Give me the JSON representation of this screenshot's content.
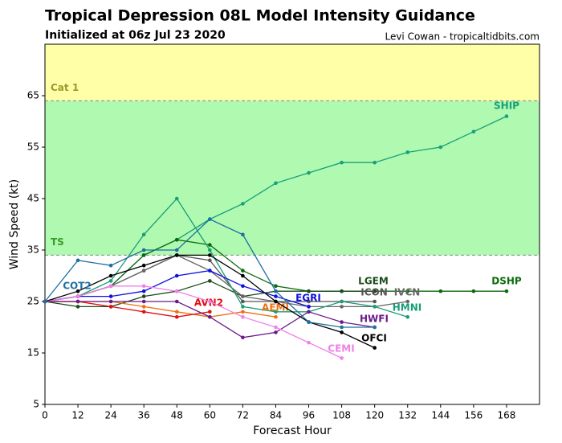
{
  "chart_data": {
    "type": "line",
    "title": "Tropical Depression 08L Model Intensity Guidance",
    "subtitle": "Initialized at 06z Jul 23 2020",
    "credit": "Levi Cowan - tropicaltidbits.com",
    "x_label": "Forecast Hour",
    "y_label": "Wind Speed (kt)",
    "xlim": [
      0,
      180
    ],
    "ylim": [
      5,
      75
    ],
    "xticks": [
      0,
      12,
      24,
      36,
      48,
      60,
      72,
      84,
      96,
      108,
      120,
      132,
      144,
      156,
      168
    ],
    "yticks": [
      5,
      15,
      25,
      35,
      45,
      55,
      65
    ],
    "bands": [
      {
        "label": "TS",
        "from": 34,
        "to": 64,
        "color": "#b0f9b0",
        "text_color": "#3a9a2a"
      },
      {
        "label": "Cat 1",
        "from": 64,
        "to": 75,
        "color": "#ffffa8",
        "text_color": "#9a9a2a"
      }
    ],
    "x": [
      0,
      12,
      24,
      36,
      48,
      60,
      72,
      84,
      96,
      108,
      120,
      132,
      144,
      156,
      168
    ],
    "series": [
      {
        "name": "SHIP",
        "color": "#17a07a",
        "values": [
          25,
          26,
          28,
          34,
          37,
          41,
          44,
          48,
          50,
          52,
          52,
          54,
          55,
          58,
          61
        ]
      },
      {
        "name": "DSHP",
        "color": "#0a6a0a",
        "values": [
          25,
          26,
          28,
          34,
          37,
          36,
          31,
          28,
          27,
          27,
          27,
          27,
          27,
          27,
          27
        ]
      },
      {
        "name": "LGEM",
        "color": "#1b4d1b",
        "values": [
          25,
          24,
          24,
          26,
          27,
          29,
          26,
          27,
          27,
          27,
          27,
          null,
          null,
          null,
          null
        ]
      },
      {
        "name": "ICON",
        "color": "#555555",
        "values": [
          25,
          26,
          28,
          31,
          34,
          33,
          25,
          25,
          25,
          25,
          25,
          null,
          null,
          null,
          null
        ]
      },
      {
        "name": "IVCN",
        "color": "#666666",
        "values": [
          25,
          26,
          28,
          31,
          34,
          31,
          26,
          25,
          24,
          24,
          24,
          25,
          null,
          null,
          null
        ]
      },
      {
        "name": "HMNI",
        "color": "#1a9e77",
        "values": [
          25,
          26,
          29,
          38,
          45,
          35,
          24,
          23,
          23,
          25,
          24,
          22,
          null,
          null,
          null
        ]
      },
      {
        "name": "EGRI",
        "color": "#1010e0",
        "values": [
          25,
          26,
          26,
          27,
          30,
          31,
          28,
          26,
          24,
          null,
          null,
          null,
          null,
          null,
          null
        ]
      },
      {
        "name": "AEMI",
        "color": "#f07010",
        "values": [
          25,
          25,
          25,
          24,
          23,
          22,
          23,
          22,
          null,
          null,
          null,
          null,
          null,
          null,
          null
        ]
      },
      {
        "name": "AVN2",
        "color": "#e01010",
        "values": [
          25,
          25,
          24,
          23,
          22,
          23,
          null,
          null,
          null,
          null,
          null,
          null,
          null,
          null,
          null
        ]
      },
      {
        "name": "HWFI",
        "color": "#6a1a8a",
        "values": [
          25,
          25,
          25,
          25,
          25,
          22,
          18,
          19,
          23,
          21,
          20,
          null,
          null,
          null,
          null
        ]
      },
      {
        "name": "CEMI",
        "color": "#f080e8",
        "values": [
          25,
          26,
          28,
          28,
          27,
          25,
          22,
          20,
          17,
          14,
          null,
          null,
          null,
          null,
          null
        ]
      },
      {
        "name": "OFCI",
        "color": "#000000",
        "values": [
          25,
          27,
          30,
          32,
          34,
          34,
          30,
          25,
          21,
          19,
          16,
          null,
          null,
          null,
          null
        ]
      },
      {
        "name": "COT2",
        "color": "#1f6fa0",
        "values": [
          25,
          33,
          32,
          35,
          35,
          41,
          38,
          27,
          21,
          20,
          20,
          null,
          null,
          null,
          null
        ]
      }
    ]
  }
}
